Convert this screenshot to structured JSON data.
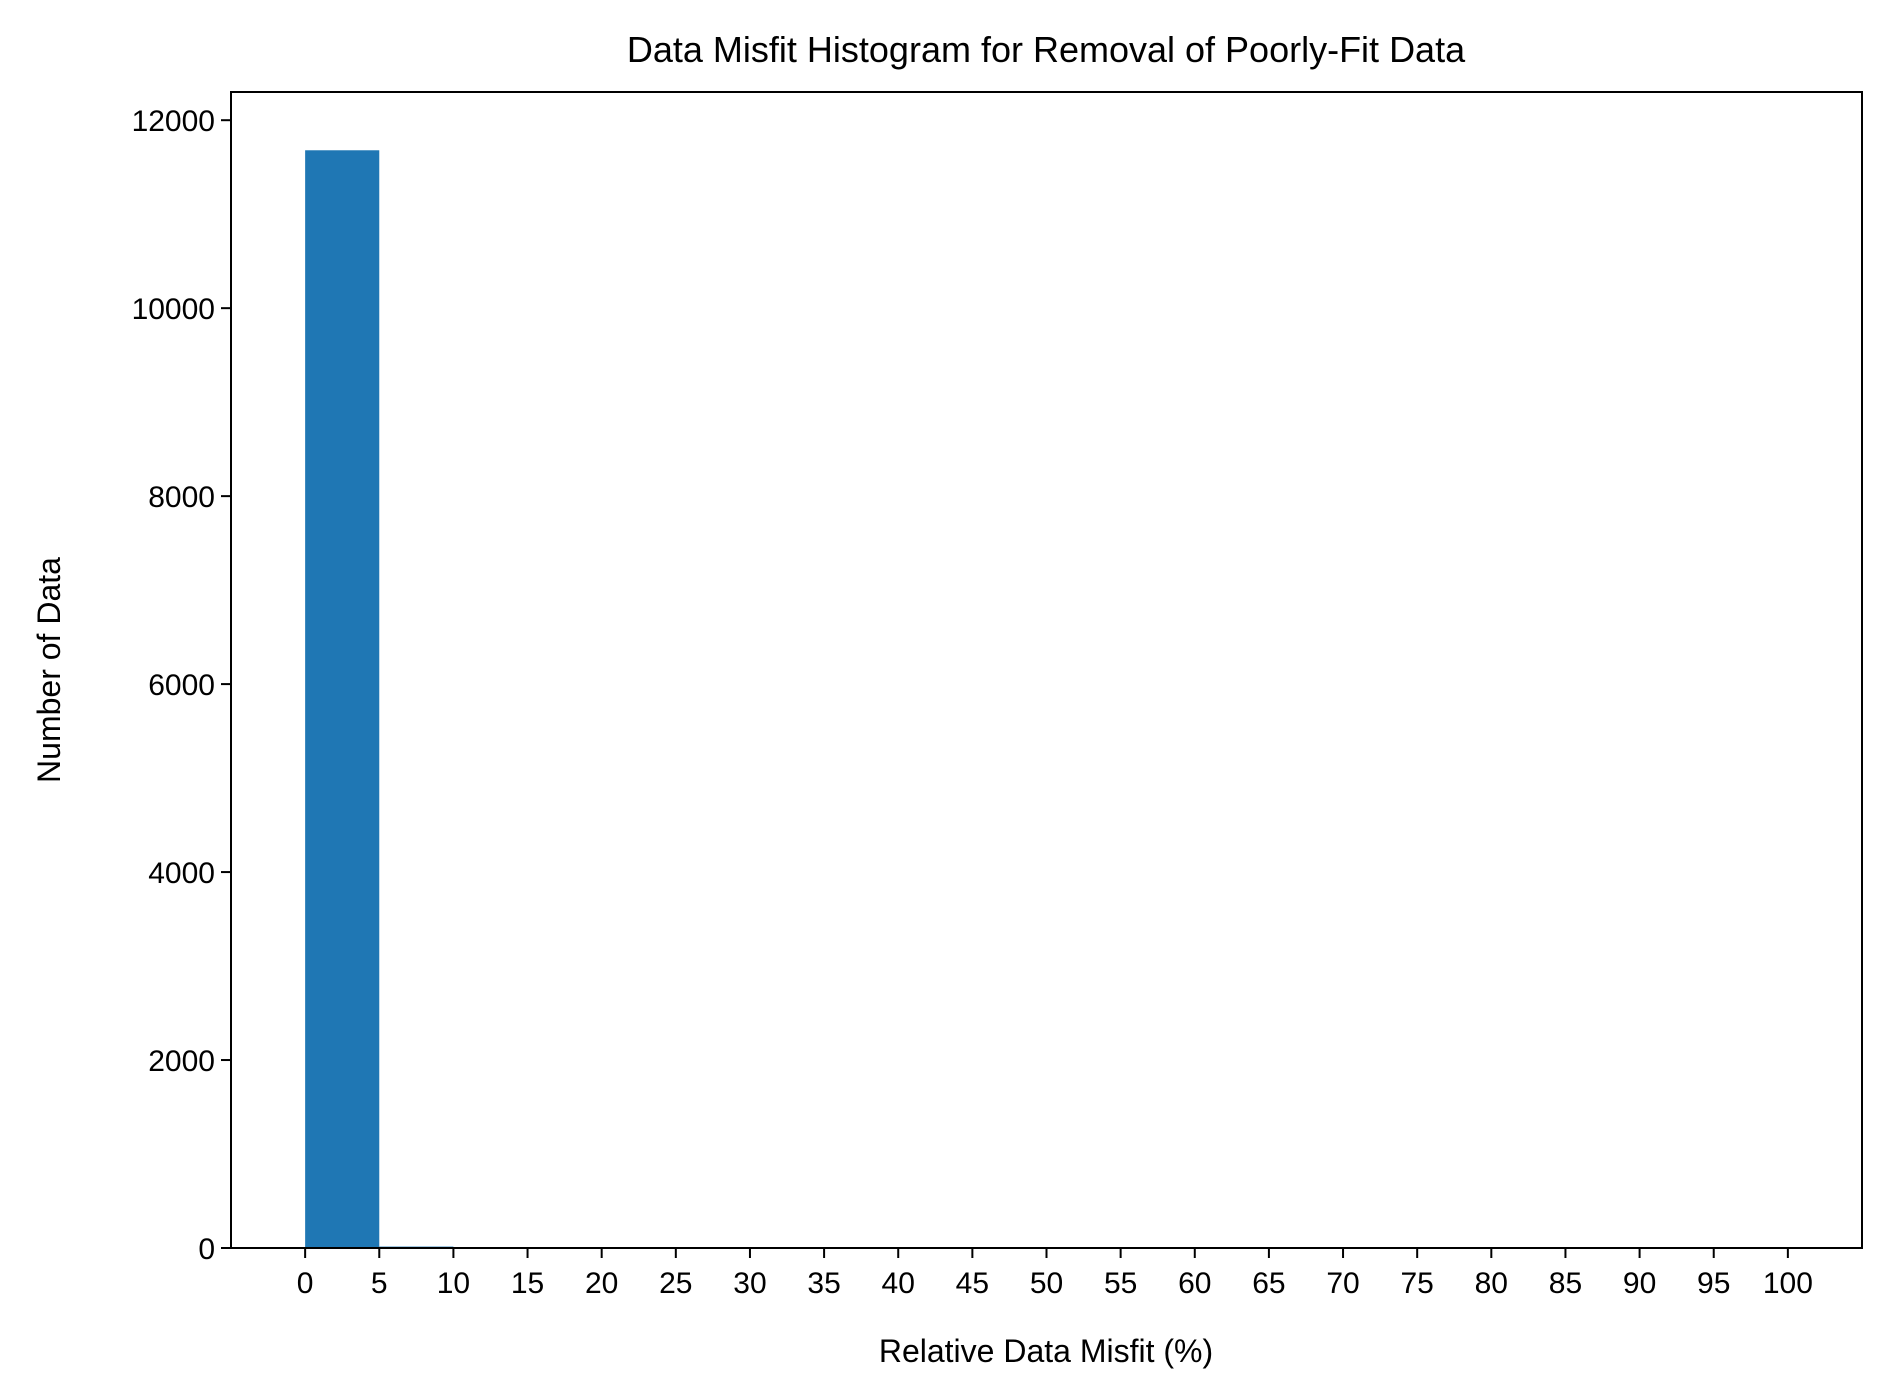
{
  "chart_data": {
    "type": "bar",
    "title": "Data Misfit Histogram for Removal of Poorly-Fit Data",
    "xlabel": "Relative Data Misfit (%)",
    "ylabel": "Number of Data",
    "bar_color": "#1f77b4",
    "bin_edges": [
      0,
      5,
      10,
      15,
      20,
      25,
      30,
      35,
      40,
      45,
      50,
      55,
      60,
      65,
      70,
      75,
      80,
      85,
      90,
      95,
      100
    ],
    "values": [
      11680,
      15,
      0,
      0,
      0,
      0,
      0,
      0,
      0,
      0,
      0,
      0,
      0,
      0,
      0,
      0,
      0,
      0,
      0,
      0
    ],
    "xlim": [
      -5,
      105
    ],
    "ylim": [
      0,
      12300
    ],
    "xticks": [
      "0",
      "5",
      "10",
      "15",
      "20",
      "25",
      "30",
      "35",
      "40",
      "45",
      "50",
      "55",
      "60",
      "65",
      "70",
      "75",
      "80",
      "85",
      "90",
      "95",
      "100"
    ],
    "yticks": [
      "0",
      "2000",
      "4000",
      "6000",
      "8000",
      "10000",
      "12000"
    ],
    "grid": false,
    "legend": false
  }
}
